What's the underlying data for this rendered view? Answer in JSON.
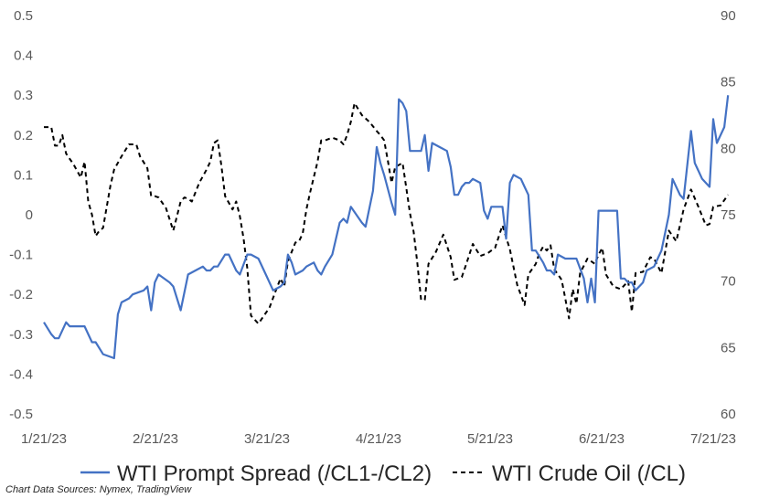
{
  "chart_data": {
    "type": "line",
    "title": "",
    "xlabel": "",
    "ylabel": "",
    "y2label": "",
    "grid": false,
    "legend_placement": "bottom",
    "x_ticks": [
      "1/21/23",
      "2/21/23",
      "3/21/23",
      "4/21/23",
      "5/21/23",
      "6/21/23",
      "7/21/23"
    ],
    "x_range": [
      "2023-01-21",
      "2023-07-21"
    ],
    "ylim_left": [
      -0.5,
      0.5
    ],
    "y_ticks_left": [
      "0.5",
      "0.4",
      "0.3",
      "0.2",
      "0.1",
      "0",
      "-0.1",
      "-0.2",
      "-0.3",
      "-0.4",
      "-0.5"
    ],
    "ylim_right": [
      60,
      90
    ],
    "y_ticks_right": [
      "90",
      "85",
      "80",
      "75",
      "70",
      "65",
      "60"
    ],
    "series": [
      {
        "name": "WTI Prompt Spread (/CL1-/CL2)",
        "axis": "left",
        "color": "#4472C4",
        "style": "solid",
        "points": [
          [
            "2023-01-21",
            -0.27
          ],
          [
            "2023-01-23",
            -0.3
          ],
          [
            "2023-01-24",
            -0.31
          ],
          [
            "2023-01-25",
            -0.31
          ],
          [
            "2023-01-27",
            -0.27
          ],
          [
            "2023-01-28",
            -0.28
          ],
          [
            "2023-02-01",
            -0.28
          ],
          [
            "2023-02-03",
            -0.32
          ],
          [
            "2023-02-04",
            -0.32
          ],
          [
            "2023-02-06",
            -0.35
          ],
          [
            "2023-02-09",
            -0.36
          ],
          [
            "2023-02-10",
            -0.25
          ],
          [
            "2023-02-11",
            -0.22
          ],
          [
            "2023-02-13",
            -0.21
          ],
          [
            "2023-02-14",
            -0.2
          ],
          [
            "2023-02-17",
            -0.19
          ],
          [
            "2023-02-18",
            -0.18
          ],
          [
            "2023-02-19",
            -0.24
          ],
          [
            "2023-02-20",
            -0.17
          ],
          [
            "2023-02-21",
            -0.15
          ],
          [
            "2023-02-24",
            -0.17
          ],
          [
            "2023-02-25",
            -0.18
          ],
          [
            "2023-02-27",
            -0.24
          ],
          [
            "2023-03-01",
            -0.15
          ],
          [
            "2023-03-03",
            -0.14
          ],
          [
            "2023-03-05",
            -0.13
          ],
          [
            "2023-03-06",
            -0.14
          ],
          [
            "2023-03-07",
            -0.14
          ],
          [
            "2023-03-08",
            -0.13
          ],
          [
            "2023-03-09",
            -0.13
          ],
          [
            "2023-03-11",
            -0.1
          ],
          [
            "2023-03-12",
            -0.1
          ],
          [
            "2023-03-14",
            -0.14
          ],
          [
            "2023-03-15",
            -0.15
          ],
          [
            "2023-03-17",
            -0.1
          ],
          [
            "2023-03-18",
            -0.1
          ],
          [
            "2023-03-20",
            -0.11
          ],
          [
            "2023-03-22",
            -0.15
          ],
          [
            "2023-03-23",
            -0.17
          ],
          [
            "2023-03-24",
            -0.19
          ],
          [
            "2023-03-26",
            -0.18
          ],
          [
            "2023-03-27",
            -0.17
          ],
          [
            "2023-03-28",
            -0.1
          ],
          [
            "2023-03-29",
            -0.12
          ],
          [
            "2023-03-30",
            -0.15
          ],
          [
            "2023-04-01",
            -0.14
          ],
          [
            "2023-04-02",
            -0.13
          ],
          [
            "2023-04-04",
            -0.12
          ],
          [
            "2023-04-05",
            -0.14
          ],
          [
            "2023-04-06",
            -0.15
          ],
          [
            "2023-04-07",
            -0.13
          ],
          [
            "2023-04-09",
            -0.1
          ],
          [
            "2023-04-11",
            -0.02
          ],
          [
            "2023-04-12",
            -0.01
          ],
          [
            "2023-04-13",
            -0.02
          ],
          [
            "2023-04-14",
            0.02
          ],
          [
            "2023-04-17",
            -0.02
          ],
          [
            "2023-04-18",
            -0.03
          ],
          [
            "2023-04-20",
            0.06
          ],
          [
            "2023-04-21",
            0.17
          ],
          [
            "2023-04-22",
            0.13
          ],
          [
            "2023-04-23",
            0.1
          ],
          [
            "2023-04-25",
            0.03
          ],
          [
            "2023-04-26",
            0.0
          ],
          [
            "2023-04-27",
            0.29
          ],
          [
            "2023-04-28",
            0.28
          ],
          [
            "2023-04-29",
            0.26
          ],
          [
            "2023-04-30",
            0.16
          ],
          [
            "2023-05-02",
            0.16
          ],
          [
            "2023-05-03",
            0.16
          ],
          [
            "2023-05-04",
            0.2
          ],
          [
            "2023-05-05",
            0.11
          ],
          [
            "2023-05-06",
            0.18
          ],
          [
            "2023-05-08",
            0.17
          ],
          [
            "2023-05-10",
            0.16
          ],
          [
            "2023-05-11",
            0.12
          ],
          [
            "2023-05-12",
            0.05
          ],
          [
            "2023-05-13",
            0.05
          ],
          [
            "2023-05-14",
            0.07
          ],
          [
            "2023-05-15",
            0.08
          ],
          [
            "2023-05-16",
            0.08
          ],
          [
            "2023-05-17",
            0.09
          ],
          [
            "2023-05-19",
            0.08
          ],
          [
            "2023-05-20",
            0.01
          ],
          [
            "2023-05-21",
            -0.01
          ],
          [
            "2023-05-22",
            0.02
          ],
          [
            "2023-05-25",
            0.02
          ],
          [
            "2023-05-26",
            -0.06
          ],
          [
            "2023-05-27",
            0.08
          ],
          [
            "2023-05-28",
            0.1
          ],
          [
            "2023-05-30",
            0.09
          ],
          [
            "2023-05-31",
            0.07
          ],
          [
            "2023-06-01",
            0.05
          ],
          [
            "2023-06-02",
            -0.09
          ],
          [
            "2023-06-03",
            -0.09
          ],
          [
            "2023-06-05",
            -0.12
          ],
          [
            "2023-06-06",
            -0.14
          ],
          [
            "2023-06-07",
            -0.14
          ],
          [
            "2023-06-08",
            -0.15
          ],
          [
            "2023-06-09",
            -0.1
          ],
          [
            "2023-06-11",
            -0.11
          ],
          [
            "2023-06-13",
            -0.11
          ],
          [
            "2023-06-14",
            -0.11
          ],
          [
            "2023-06-16",
            -0.16
          ],
          [
            "2023-06-17",
            -0.22
          ],
          [
            "2023-06-18",
            -0.16
          ],
          [
            "2023-06-19",
            -0.22
          ],
          [
            "2023-06-20",
            0.01
          ],
          [
            "2023-06-25",
            0.01
          ],
          [
            "2023-06-26",
            -0.16
          ],
          [
            "2023-06-27",
            -0.16
          ],
          [
            "2023-06-28",
            -0.17
          ],
          [
            "2023-06-29",
            -0.17
          ],
          [
            "2023-06-30",
            -0.19
          ],
          [
            "2023-07-02",
            -0.17
          ],
          [
            "2023-07-03",
            -0.14
          ],
          [
            "2023-07-05",
            -0.13
          ],
          [
            "2023-07-06",
            -0.11
          ],
          [
            "2023-07-07",
            -0.09
          ],
          [
            "2023-07-09",
            0.0
          ],
          [
            "2023-07-10",
            0.09
          ],
          [
            "2023-07-12",
            0.05
          ],
          [
            "2023-07-13",
            0.04
          ],
          [
            "2023-07-15",
            0.21
          ],
          [
            "2023-07-16",
            0.13
          ],
          [
            "2023-07-18",
            0.09
          ],
          [
            "2023-07-20",
            0.07
          ],
          [
            "2023-07-21",
            0.24
          ],
          [
            "2023-07-22",
            0.18
          ],
          [
            "2023-07-24",
            0.22
          ],
          [
            "2023-07-25",
            0.3
          ]
        ]
      },
      {
        "name": "WTI Crude Oil (/CL)",
        "axis": "right",
        "color": "#000000",
        "style": "dashed",
        "points": [
          [
            "2023-01-21",
            81.6
          ],
          [
            "2023-01-22",
            81.6
          ],
          [
            "2023-01-23",
            81.6
          ],
          [
            "2023-01-24",
            80.2
          ],
          [
            "2023-01-25",
            80.2
          ],
          [
            "2023-01-26",
            81.0
          ],
          [
            "2023-01-27",
            79.6
          ],
          [
            "2023-01-29",
            78.8
          ],
          [
            "2023-01-31",
            77.8
          ],
          [
            "2023-02-01",
            79.0
          ],
          [
            "2023-02-02",
            76.0
          ],
          [
            "2023-02-03",
            75.0
          ],
          [
            "2023-02-04",
            73.4
          ],
          [
            "2023-02-05",
            73.8
          ],
          [
            "2023-02-06",
            74.0
          ],
          [
            "2023-02-08",
            77.2
          ],
          [
            "2023-02-09",
            78.4
          ],
          [
            "2023-02-11",
            79.4
          ],
          [
            "2023-02-13",
            80.3
          ],
          [
            "2023-02-15",
            80.3
          ],
          [
            "2023-02-16",
            79.4
          ],
          [
            "2023-02-18",
            78.5
          ],
          [
            "2023-02-19",
            76.4
          ],
          [
            "2023-02-20",
            76.4
          ],
          [
            "2023-02-21",
            76.3
          ],
          [
            "2023-02-23",
            75.5
          ],
          [
            "2023-02-25",
            73.8
          ],
          [
            "2023-02-27",
            76.0
          ],
          [
            "2023-02-28",
            76.3
          ],
          [
            "2023-03-01",
            76.2
          ],
          [
            "2023-03-02",
            76.0
          ],
          [
            "2023-03-04",
            77.4
          ],
          [
            "2023-03-06",
            78.4
          ],
          [
            "2023-03-07",
            79.0
          ],
          [
            "2023-03-08",
            80.4
          ],
          [
            "2023-03-09",
            80.6
          ],
          [
            "2023-03-10",
            78.7
          ],
          [
            "2023-03-11",
            76.4
          ],
          [
            "2023-03-13",
            75.4
          ],
          [
            "2023-03-14",
            76.0
          ],
          [
            "2023-03-15",
            74.9
          ],
          [
            "2023-03-16",
            73.2
          ],
          [
            "2023-03-17",
            71.0
          ],
          [
            "2023-03-18",
            67.4
          ],
          [
            "2023-03-20",
            66.8
          ],
          [
            "2023-03-21",
            67.2
          ],
          [
            "2023-03-23",
            68.0
          ],
          [
            "2023-03-25",
            69.5
          ],
          [
            "2023-03-26",
            70.2
          ],
          [
            "2023-03-27",
            69.6
          ],
          [
            "2023-03-28",
            71.5
          ],
          [
            "2023-03-30",
            72.9
          ],
          [
            "2023-03-31",
            73.0
          ],
          [
            "2023-04-01",
            73.6
          ],
          [
            "2023-04-02",
            75.4
          ],
          [
            "2023-04-03",
            76.7
          ],
          [
            "2023-04-05",
            79.0
          ],
          [
            "2023-04-06",
            80.6
          ],
          [
            "2023-04-07",
            80.6
          ],
          [
            "2023-04-09",
            80.8
          ],
          [
            "2023-04-11",
            80.6
          ],
          [
            "2023-04-12",
            80.3
          ],
          [
            "2023-04-13",
            81.0
          ],
          [
            "2023-04-14",
            82.0
          ],
          [
            "2023-04-15",
            83.4
          ],
          [
            "2023-04-17",
            82.5
          ],
          [
            "2023-04-19",
            82.0
          ],
          [
            "2023-04-21",
            81.3
          ],
          [
            "2023-04-22",
            81.0
          ],
          [
            "2023-04-23",
            80.6
          ],
          [
            "2023-04-24",
            79.1
          ],
          [
            "2023-04-25",
            77.4
          ],
          [
            "2023-04-26",
            78.6
          ],
          [
            "2023-04-28",
            78.9
          ],
          [
            "2023-04-30",
            75.1
          ],
          [
            "2023-05-01",
            73.7
          ],
          [
            "2023-05-02",
            71.3
          ],
          [
            "2023-05-03",
            68.6
          ],
          [
            "2023-05-04",
            68.6
          ],
          [
            "2023-05-05",
            71.3
          ],
          [
            "2023-05-07",
            72.2
          ],
          [
            "2023-05-09",
            73.5
          ],
          [
            "2023-05-11",
            71.8
          ],
          [
            "2023-05-12",
            70.1
          ],
          [
            "2023-05-14",
            70.3
          ],
          [
            "2023-05-15",
            71.1
          ],
          [
            "2023-05-17",
            72.8
          ],
          [
            "2023-05-19",
            71.9
          ],
          [
            "2023-05-21",
            72.1
          ],
          [
            "2023-05-23",
            72.5
          ],
          [
            "2023-05-25",
            74.2
          ],
          [
            "2023-05-27",
            72.4
          ],
          [
            "2023-05-29",
            69.7
          ],
          [
            "2023-05-31",
            68.2
          ],
          [
            "2023-06-01",
            70.5
          ],
          [
            "2023-06-03",
            71.3
          ],
          [
            "2023-06-04",
            72.1
          ],
          [
            "2023-06-05",
            72.6
          ],
          [
            "2023-06-06",
            72.3
          ],
          [
            "2023-06-07",
            72.7
          ],
          [
            "2023-06-08",
            70.9
          ],
          [
            "2023-06-10",
            70.1
          ],
          [
            "2023-06-11",
            68.7
          ],
          [
            "2023-06-12",
            67.2
          ],
          [
            "2023-06-13",
            69.4
          ],
          [
            "2023-06-14",
            68.3
          ],
          [
            "2023-06-15",
            70.6
          ],
          [
            "2023-06-17",
            71.7
          ],
          [
            "2023-06-19",
            71.3
          ],
          [
            "2023-06-20",
            72.0
          ],
          [
            "2023-06-21",
            72.5
          ],
          [
            "2023-06-22",
            70.5
          ],
          [
            "2023-06-24",
            69.6
          ],
          [
            "2023-06-26",
            69.4
          ],
          [
            "2023-06-28",
            70.0
          ],
          [
            "2023-06-29",
            67.7
          ],
          [
            "2023-06-30",
            70.6
          ],
          [
            "2023-07-02",
            70.7
          ],
          [
            "2023-07-04",
            71.8
          ],
          [
            "2023-07-05",
            71.7
          ],
          [
            "2023-07-07",
            70.6
          ],
          [
            "2023-07-09",
            73.8
          ],
          [
            "2023-07-11",
            73.0
          ],
          [
            "2023-07-13",
            75.4
          ],
          [
            "2023-07-15",
            76.9
          ],
          [
            "2023-07-17",
            75.6
          ],
          [
            "2023-07-19",
            74.2
          ],
          [
            "2023-07-20",
            74.3
          ],
          [
            "2023-07-21",
            75.6
          ],
          [
            "2023-07-23",
            75.7
          ],
          [
            "2023-07-25",
            76.5
          ]
        ]
      }
    ],
    "source_note": "Chart Data Sources: Nymex, TradingView"
  }
}
